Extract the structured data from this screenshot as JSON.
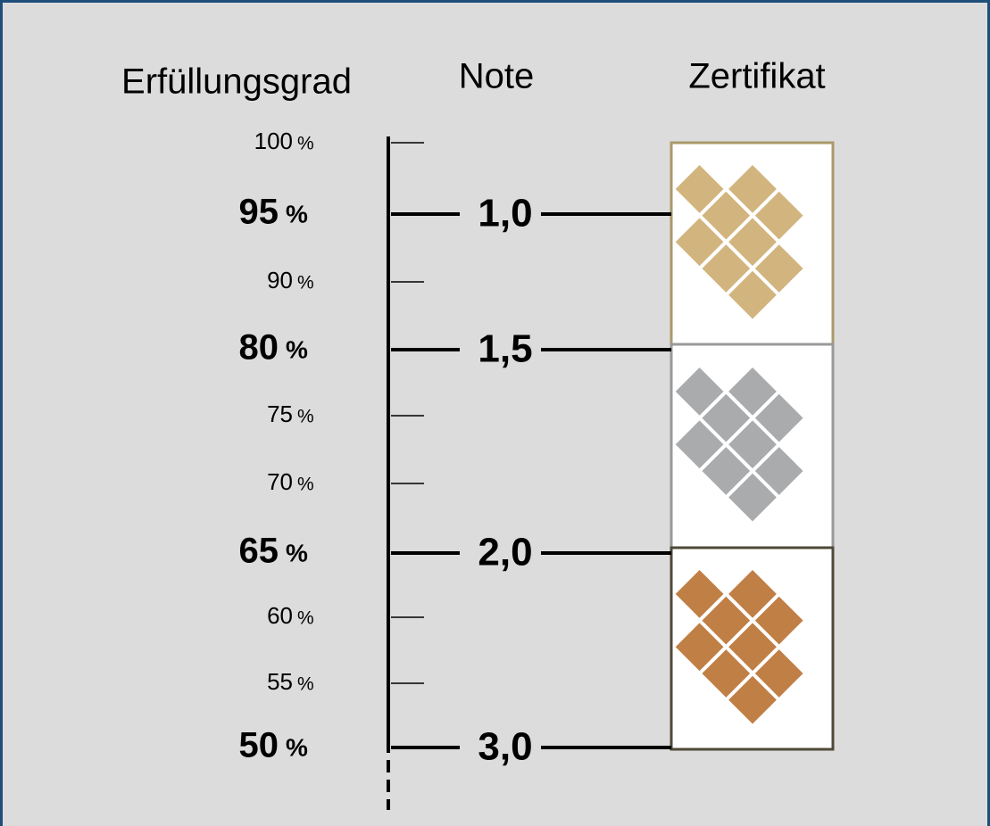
{
  "headers": [
    "Erfüllungsgrad",
    "Note",
    "Zertifikat"
  ],
  "unit": "%",
  "levels": [
    {
      "percent": "100"
    },
    {
      "percent": "95",
      "grade": "1,0"
    },
    {
      "percent": "90"
    },
    {
      "percent": "80",
      "grade": "1,5"
    },
    {
      "percent": "75"
    },
    {
      "percent": "70"
    },
    {
      "percent": "65",
      "grade": "2,0"
    },
    {
      "percent": "60"
    },
    {
      "percent": "55"
    },
    {
      "percent": "50",
      "grade": "3,0"
    }
  ]
}
